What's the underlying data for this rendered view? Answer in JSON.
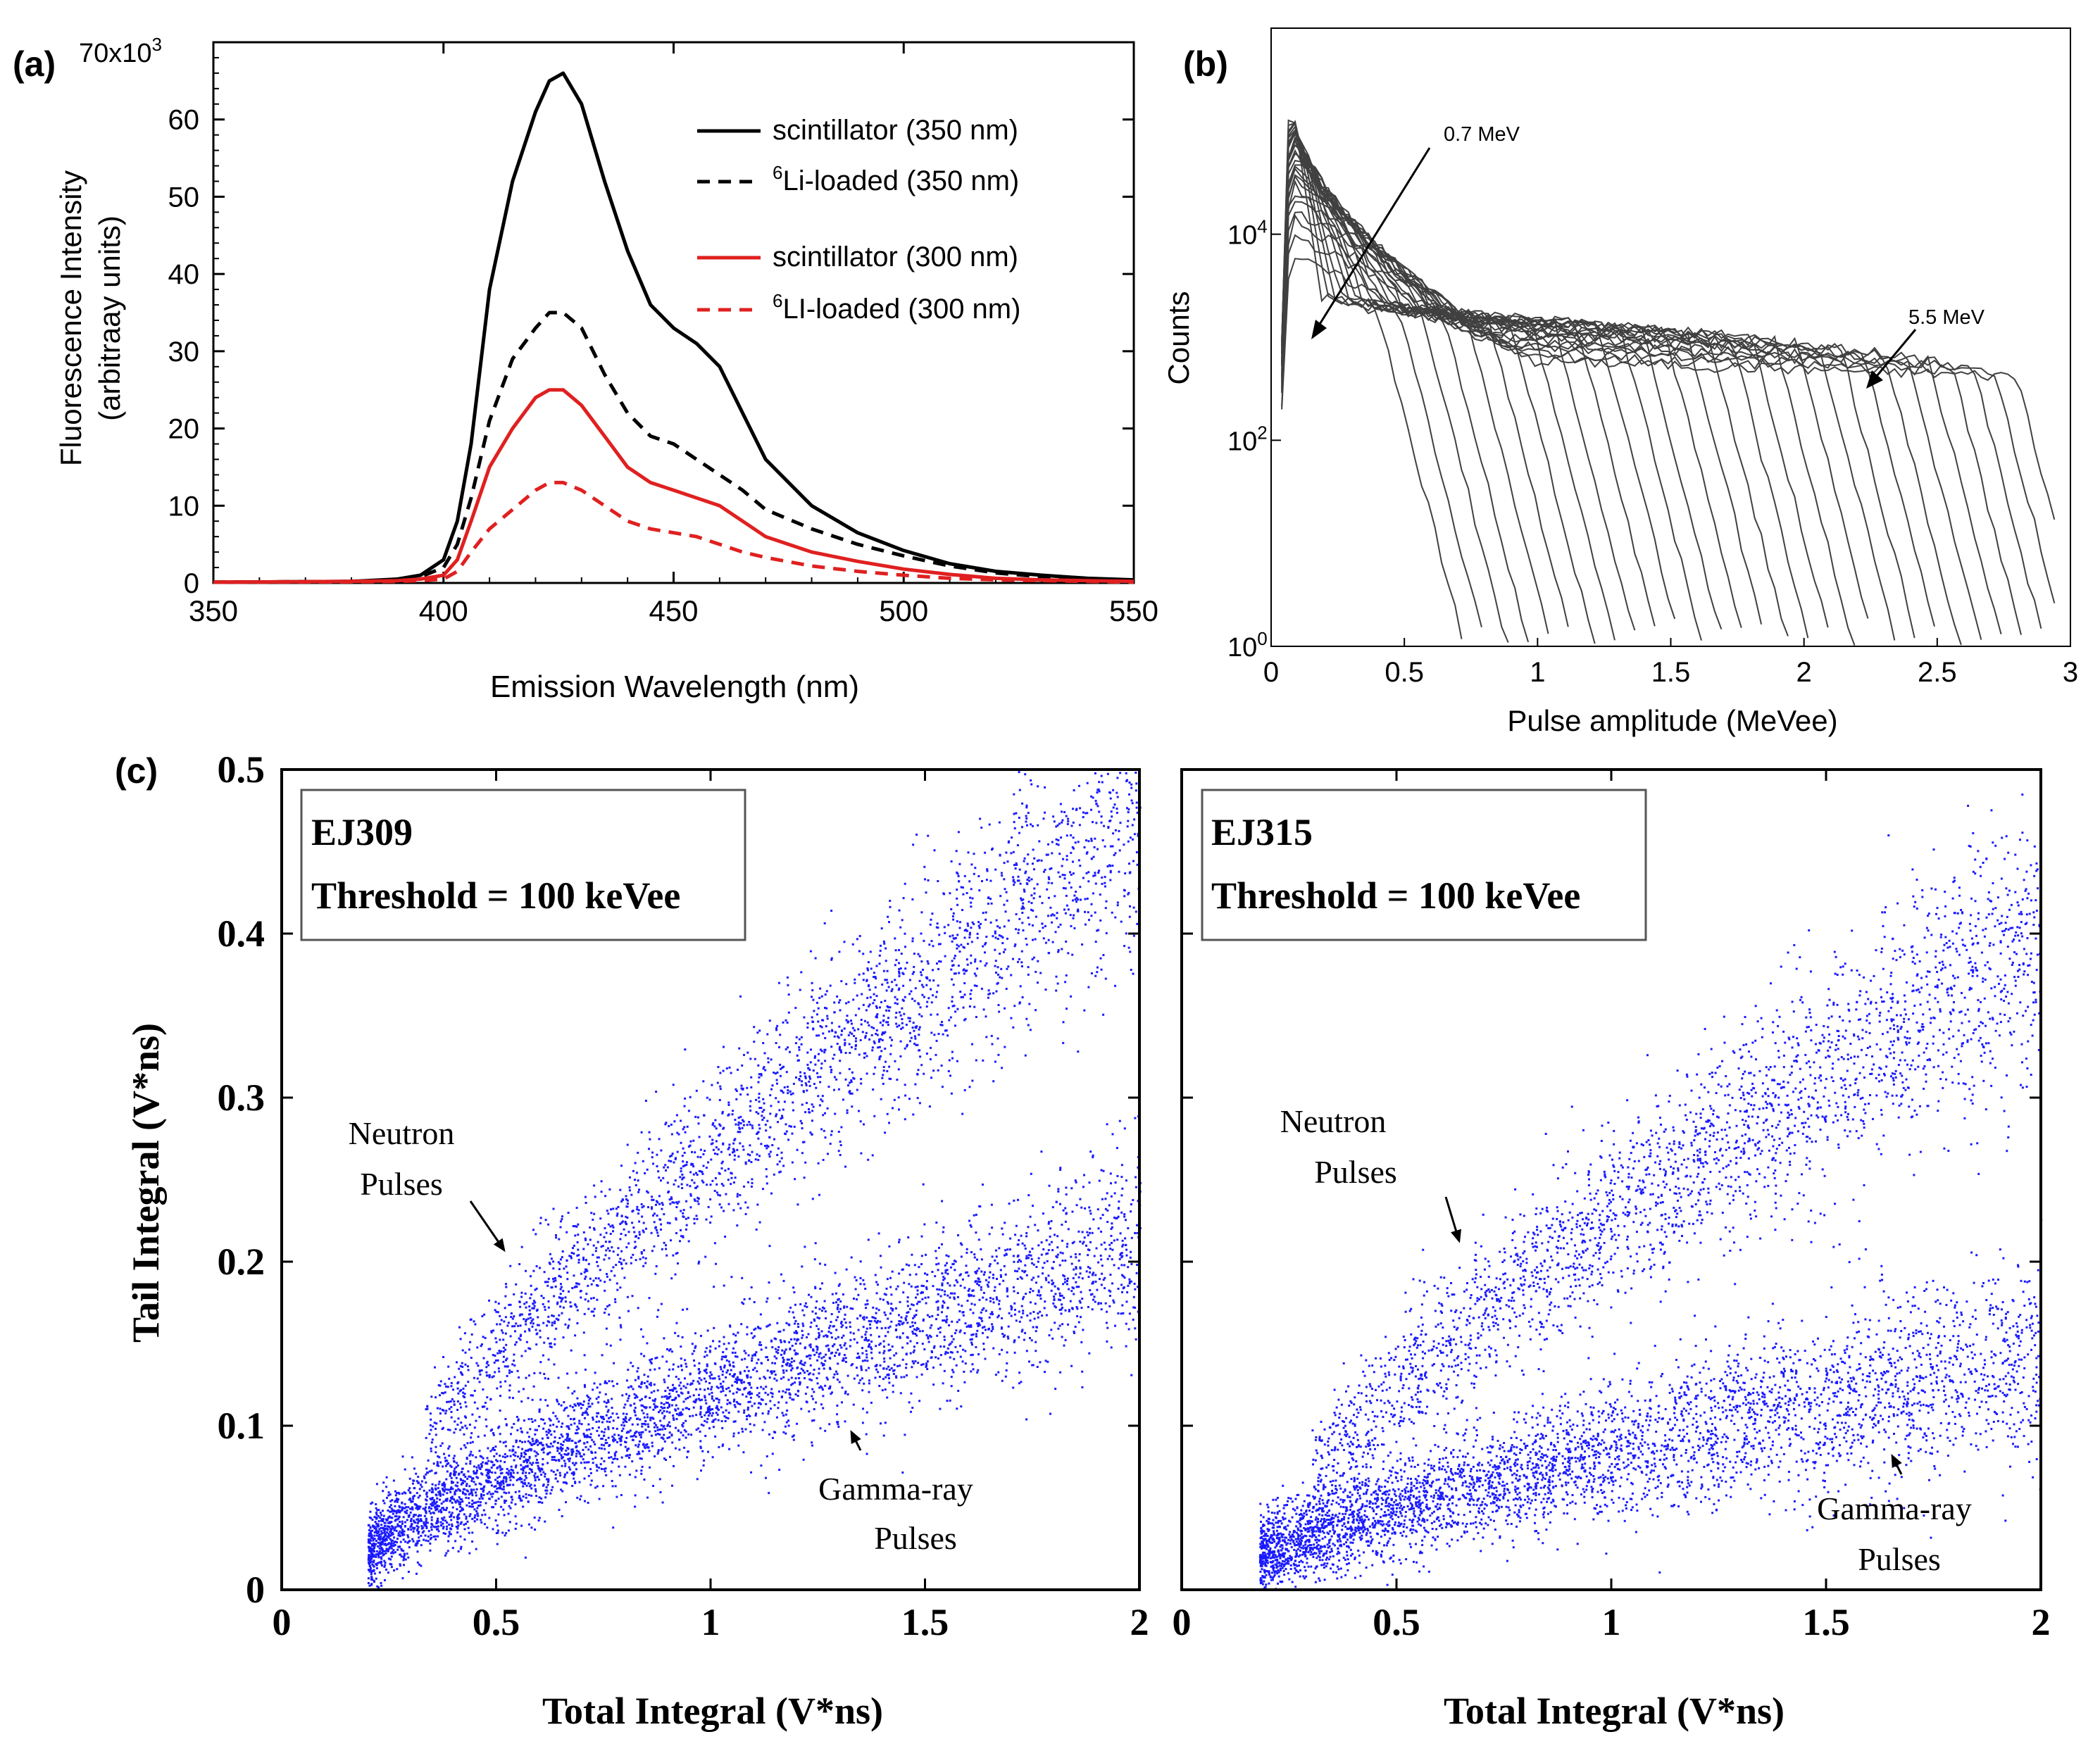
{
  "panel_labels": {
    "a": "(a)",
    "b": "(b)",
    "c": "(c)"
  },
  "chart_data": [
    {
      "id": "a",
      "type": "line",
      "xlabel": "Emission Wavelength (nm)",
      "ylabel_line1": "Fluorescence Intensity",
      "ylabel_line2": "(arbitraay units)",
      "xlim": [
        350,
        550
      ],
      "ylim": [
        0,
        70
      ],
      "y_multiplier_label": "70x10",
      "y_multiplier_exp": "3",
      "xticks": [
        350,
        400,
        450,
        500,
        550
      ],
      "yticks": [
        0,
        10,
        20,
        30,
        40,
        50,
        60
      ],
      "x": [
        350,
        380,
        390,
        395,
        400,
        403,
        406,
        410,
        415,
        420,
        423,
        426,
        430,
        435,
        440,
        445,
        450,
        455,
        460,
        465,
        470,
        480,
        490,
        500,
        510,
        520,
        530,
        540,
        550
      ],
      "series": [
        {
          "name": "scintillator (350 nm)",
          "color": "#000000",
          "dash": "solid",
          "values": [
            0.1,
            0.2,
            0.5,
            1.0,
            3.0,
            8,
            18,
            38,
            52,
            61,
            65,
            66,
            62,
            52,
            43,
            36,
            33,
            31,
            28,
            22,
            16,
            10,
            6.5,
            4.2,
            2.5,
            1.5,
            1.0,
            0.6,
            0.4
          ]
        },
        {
          "name": "Li-loaded (350 nm)",
          "name_sup": "6",
          "color": "#000000",
          "dash": "dashed",
          "values": [
            0.1,
            0.2,
            0.4,
            0.8,
            2.0,
            5,
            11,
            21,
            29,
            33,
            35,
            35,
            33,
            27,
            22,
            19,
            18,
            16,
            14,
            12,
            9.5,
            7,
            5,
            3.5,
            2.2,
            1.3,
            0.8,
            0.5,
            0.3
          ]
        },
        {
          "name": "scintillator (300 nm)",
          "color": "#e02020",
          "dash": "solid",
          "values": [
            0.1,
            0.2,
            0.3,
            0.5,
            1.0,
            3,
            8,
            15,
            20,
            24,
            25,
            25,
            23,
            19,
            15,
            13,
            12,
            11,
            10,
            8,
            6,
            4,
            2.8,
            1.8,
            1.1,
            0.6,
            0.4,
            0.3,
            0.2
          ]
        },
        {
          "name": "LI-loaded (300 nm)",
          "name_sup": "6",
          "color": "#e02020",
          "dash": "dashed",
          "values": [
            0.1,
            0.15,
            0.2,
            0.3,
            0.5,
            1.5,
            4,
            7,
            9.5,
            12,
            13,
            13,
            12,
            10,
            8,
            7,
            6.5,
            6,
            5,
            4,
            3.3,
            2.2,
            1.5,
            1.0,
            0.6,
            0.4,
            0.3,
            0.2,
            0.1
          ]
        }
      ]
    },
    {
      "id": "b",
      "type": "line",
      "xlabel": "Pulse amplitude (MeVee)",
      "ylabel": "Counts",
      "xlim": [
        0,
        3
      ],
      "ylim": [
        1,
        1000000
      ],
      "yscale": "log",
      "xticks": [
        "0",
        "0.5",
        "1",
        "1.5",
        "2",
        "2.5",
        "3"
      ],
      "yticks": [
        {
          "base": "10",
          "exp": "0"
        },
        {
          "base": "10",
          "exp": "2"
        },
        {
          "base": "10",
          "exp": "4"
        }
      ],
      "annotations": [
        "0.7 MeV",
        "5.5 MeV"
      ],
      "series_count": 30,
      "cutoff_range_mevee": [
        0.4,
        2.8
      ]
    },
    {
      "id": "c1",
      "type": "scatter",
      "legend_line1": "EJ309",
      "legend_line2": "Threshold = 100 keVee",
      "xlabel": "Total Integral (V*ns)",
      "ylabel": "Tail Integral (V*ns)",
      "xlim": [
        0,
        2
      ],
      "ylim": [
        0,
        0.5
      ],
      "xticks": [
        "0",
        "0.5",
        "1",
        "1.5",
        "2"
      ],
      "yticks": [
        "0",
        "0.1",
        "0.2",
        "0.3",
        "0.4",
        "0.5"
      ],
      "point_color": "#1a1aff",
      "bands": [
        {
          "name": "Neutron",
          "x_start": 0.33,
          "x_end": 2.0,
          "y_at_start": 0.09,
          "y_at_end": 0.47
        },
        {
          "name": "Gamma-ray",
          "x_start": 0.2,
          "x_end": 2.0,
          "y_at_start": 0.025,
          "y_at_end": 0.21
        }
      ],
      "annotation_neutron_1": "Neutron",
      "annotation_neutron_2": "Pulses",
      "annotation_gamma_1": "Gamma-ray",
      "annotation_gamma_2": "Pulses"
    },
    {
      "id": "c2",
      "type": "scatter",
      "legend_line1": "EJ315",
      "legend_line2": "Threshold = 100 keVee",
      "xlabel": "Total Integral (V*ns)",
      "xlim": [
        0,
        2
      ],
      "ylim": [
        0,
        0.5
      ],
      "xticks": [
        "0",
        "0.5",
        "1",
        "1.5",
        "2"
      ],
      "point_color": "#1a1aff",
      "bands": [
        {
          "name": "Neutron",
          "x_start": 0.3,
          "x_end": 2.0,
          "y_at_start": 0.07,
          "y_at_end": 0.4
        },
        {
          "name": "Gamma-ray",
          "x_start": 0.18,
          "x_end": 2.0,
          "y_at_start": 0.02,
          "y_at_end": 0.14
        }
      ],
      "annotation_neutron_1": "Neutron",
      "annotation_neutron_2": "Pulses",
      "annotation_gamma_1": "Gamma-ray",
      "annotation_gamma_2": "Pulses"
    }
  ]
}
